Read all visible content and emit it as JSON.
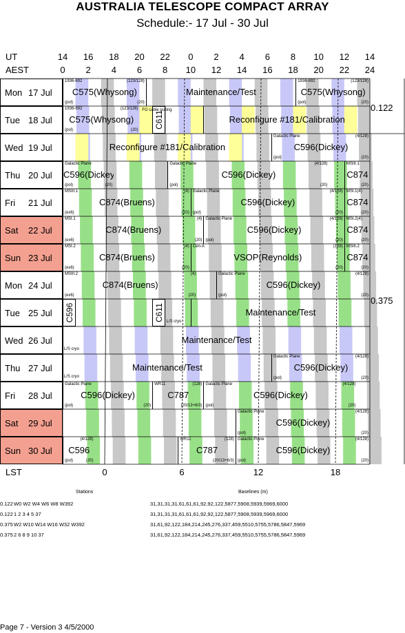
{
  "title": "AUSTRALIA TELESCOPE COMPACT ARRAY",
  "subtitle": "Schedule:- 17 Jul - 30 Jul",
  "axes": {
    "ut_label": "UT",
    "aest_label": "AEST",
    "lst_label": "LST",
    "ut_ticks": [
      "14",
      "16",
      "18",
      "20",
      "22",
      "0",
      "2",
      "4",
      "6",
      "8",
      "10",
      "12",
      "14"
    ],
    "aest_ticks": [
      "0",
      "2",
      "4",
      "6",
      "8",
      "10",
      "12",
      "14",
      "16",
      "18",
      "20",
      "22",
      "24"
    ],
    "lst_ticks": [
      "0",
      "6",
      "12",
      "18"
    ]
  },
  "days": [
    {
      "name": "Mon",
      "date": "17 Jul",
      "weekend": false
    },
    {
      "name": "Tue",
      "date": "18 Jul",
      "weekend": false
    },
    {
      "name": "Wed",
      "date": "19 Jul",
      "weekend": false
    },
    {
      "name": "Thu",
      "date": "20 Jul",
      "weekend": false
    },
    {
      "name": "Fri",
      "date": "21 Jul",
      "weekend": false
    },
    {
      "name": "Sat",
      "date": "22 Jul",
      "weekend": true
    },
    {
      "name": "Sun",
      "date": "23 Jul",
      "weekend": true
    },
    {
      "name": "Mon",
      "date": "24 Jul",
      "weekend": false
    },
    {
      "name": "Tue",
      "date": "25 Jul",
      "weekend": false
    },
    {
      "name": "Wed",
      "date": "26 Jul",
      "weekend": false
    },
    {
      "name": "Thu",
      "date": "27 Jul",
      "weekend": false
    },
    {
      "name": "Fri",
      "date": "28 Jul",
      "weekend": false
    },
    {
      "name": "Sat",
      "date": "29 Jul",
      "weekend": true
    },
    {
      "name": "Sun",
      "date": "30 Jul",
      "weekend": true
    }
  ],
  "configs": {
    "first": "0.122",
    "second": "0.375"
  },
  "blocks": [
    {
      "row": 0,
      "start": 0,
      "end": 6.5,
      "main": "C575(Whysong)",
      "tl": "1936-692",
      "tr": "(123/128)",
      "bl": "(pol)",
      "br": "(20)"
    },
    {
      "row": 0,
      "start": 6.5,
      "end": 18.2,
      "main": "Maintenance/Test",
      "tl": "",
      "tr": "",
      "bl": "",
      "br": ""
    },
    {
      "row": 0,
      "start": 18.2,
      "end": 24,
      "main": "C575(Whysong)",
      "tl": "1936-692",
      "tr": "(123/128)",
      "bl": "(pol)",
      "br": "(20)"
    },
    {
      "row": 1,
      "start": 0,
      "end": 6,
      "main": "C575(Whysong)",
      "tl": "1936-692",
      "tr": "(123/128)",
      "bl": "(pol)",
      "br": "(20)"
    },
    {
      "row": 1,
      "start": 11,
      "end": 24,
      "main": "Reconfigure #181/Calibration",
      "tl": "",
      "tr": "",
      "bl": "",
      "br": ""
    },
    {
      "row": 2,
      "start": 0,
      "end": 16.3,
      "main": "Reconfigure #181/Calibration",
      "tl": "",
      "tr": "",
      "bl": "",
      "br": ""
    },
    {
      "row": 2,
      "start": 16.3,
      "end": 24,
      "main": "C596(Dickey)",
      "tl": "Galactic Plane",
      "tr": "(4/128)",
      "bl": "(pol)",
      "br": "(20)"
    },
    {
      "row": 3,
      "start": 0,
      "end": 4,
      "main": "C596(Dickey)",
      "tl": "Galactic Plane",
      "tr": "",
      "bl": "(pol)",
      "br": "(20)"
    },
    {
      "row": 3,
      "start": 8.2,
      "end": 20.8,
      "main": "C596(Dickey)",
      "tl": "Galactic Plane",
      "tr": "(4/128)",
      "bl": "(pol)",
      "br": "(20)"
    },
    {
      "row": 3,
      "start": 22,
      "end": 24,
      "main": "C874",
      "tl": "MSIII.1",
      "tr": "",
      "bl": "",
      "br": "(20)"
    },
    {
      "row": 4,
      "start": 0,
      "end": 10,
      "main": "C874(Bruens)",
      "tl": "MSIII.1",
      "tr": "(4)",
      "bl": "(ex6)",
      "br": "(20)"
    },
    {
      "row": 4,
      "start": 10,
      "end": 22,
      "main": "C596(Dickey)",
      "tl": "Galactic Plane",
      "tr": "(4/128)",
      "bl": "(pol)",
      "br": "(20)"
    },
    {
      "row": 4,
      "start": 22,
      "end": 24,
      "main": "C874",
      "tl": "MSI.1(4)",
      "tr": "",
      "bl": "",
      "br": "(20)"
    },
    {
      "row": 5,
      "start": 0,
      "end": 11,
      "main": "C874(Bruens)",
      "tl": "MSI.1",
      "tr": "(4)",
      "bl": "(ex6)",
      "br": "(20)"
    },
    {
      "row": 5,
      "start": 11,
      "end": 22,
      "main": "C596(Dickey)",
      "tl": "Galactic Plane",
      "tr": "(4/128)",
      "bl": "(pol)",
      "br": "(20)"
    },
    {
      "row": 5,
      "start": 22,
      "end": 24,
      "main": "C874",
      "tl": "MSI.2(4)",
      "tr": "",
      "bl": "",
      "br": "(20)"
    },
    {
      "row": 6,
      "start": 0,
      "end": 10,
      "main": "C874(Bruens)",
      "tl": "MSI.2",
      "tr": "(4)",
      "bl": "(ex6)",
      "br": "(20)"
    },
    {
      "row": 6,
      "start": 10,
      "end": 22,
      "main": "VSOP(Reynolds)",
      "tl": "Cen-A",
      "tr": "(128)",
      "bl": "",
      "br": "(20)"
    },
    {
      "row": 6,
      "start": 22,
      "end": 24,
      "main": "C874",
      "tl": "MSIII.2",
      "tr": "",
      "bl": "",
      "br": "(20)"
    },
    {
      "row": 7,
      "start": 0,
      "end": 10.5,
      "main": "C874(Bruens)",
      "tl": "MSIII.2",
      "tr": "(4)",
      "bl": "(ex6)",
      "br": "(20)"
    },
    {
      "row": 7,
      "start": 12,
      "end": 24,
      "main": "C596(Dickey)",
      "tl": "Galactic Plane",
      "tr": "(4/128)",
      "bl": "(pol)",
      "br": "(20)"
    },
    {
      "row": 8,
      "start": 10,
      "end": 24,
      "main": "Maintenance/Test",
      "tl": "",
      "tr": "",
      "bl": "",
      "br": ""
    },
    {
      "row": 9,
      "start": 0,
      "end": 24,
      "main": "Maintenance/Test",
      "tl": "",
      "tr": "",
      "bl": "",
      "br": ""
    },
    {
      "row": 10,
      "start": 0,
      "end": 16.3,
      "main": "Maintenance/Test",
      "tl": "",
      "tr": "",
      "bl": "",
      "br": ""
    },
    {
      "row": 10,
      "start": 16.3,
      "end": 24,
      "main": "C596(Dickey)",
      "tl": "Galactic Plane",
      "tr": "(4/128)",
      "bl": "(pol)",
      "br": "(20)"
    },
    {
      "row": 11,
      "start": 0,
      "end": 7,
      "main": "C596(Dickey)",
      "tl": "Galactic Plane",
      "tr": "",
      "bl": "(pol)",
      "br": "(20)"
    },
    {
      "row": 11,
      "start": 7,
      "end": 11,
      "main": "C787",
      "tl": "WR11",
      "tr": "(128)",
      "bl": "",
      "br": "(20/13+6/3)"
    },
    {
      "row": 11,
      "start": 11,
      "end": 23,
      "main": "C596(Dickey)",
      "tl": "Galactic Plane",
      "tr": "(4/128)",
      "bl": "(pol)",
      "br": "(20)"
    },
    {
      "row": 12,
      "start": 13.5,
      "end": 24,
      "main": "C596(Dickey)",
      "tl": "Galactic Plane",
      "tr": "(4/128)",
      "bl": "(pol)",
      "br": "(20)"
    },
    {
      "row": 13,
      "start": 0,
      "end": 2.5,
      "main": "C596",
      "tl": "",
      "tr": "(4/128)",
      "bl": "(pol)",
      "br": "(20)"
    },
    {
      "row": 13,
      "start": 9,
      "end": 13.5,
      "main": "C787",
      "tl": "WR11",
      "tr": "(128)",
      "bl": "",
      "br": "(20/13+6/3)"
    },
    {
      "row": 13,
      "start": 13.5,
      "end": 24,
      "main": "C596(Dickey)",
      "tl": "Galactic Plane",
      "tr": "(4/128)",
      "bl": "(pol)",
      "br": "(20)"
    }
  ],
  "vertical_blocks": [
    {
      "row": 1,
      "start": 7,
      "end": 8,
      "label": "C611"
    },
    {
      "row": 8,
      "start": 7,
      "end": 8,
      "label": "C611"
    },
    {
      "row": 8,
      "start": 0,
      "end": 1,
      "label": "C596"
    }
  ],
  "notes": [
    {
      "row": 1,
      "hour": 6.2,
      "text": "FO cable pulling"
    },
    {
      "row": 8,
      "hour": 8.1,
      "text": "L/S cryo"
    },
    {
      "row": 9,
      "hour": 0.1,
      "text": "L/S cryo"
    },
    {
      "row": 10,
      "hour": 0.1,
      "text": "L/S cryo"
    }
  ],
  "stations": {
    "stations_title": "Stations",
    "baselines_title": "Baselines (m)",
    "rows": [
      {
        "config": "0.122",
        "stations": "W0 W2 W4 W6 W8 W392",
        "baselines": "31,31,31,31,61,61,61,92,92,122,5877,5908,5939,5969,6000"
      },
      {
        "config": "0.122",
        "stations": "1 2 3 4 5 37",
        "baselines": "31,31,31,31,61,61,61,92,92,122,5877,5908,5939,5969,6000"
      },
      {
        "config": "0.375",
        "stations": "W2 W10 W14 W16 W32 W392",
        "baselines": "31,61,92,122,184,214,245,276,337,459,5510,5755,5786,5847,5969"
      },
      {
        "config": "0.375",
        "stations": "2 6 8 9 10 37",
        "baselines": "31,61,92,122,184,214,245,276,337,459,5510,5755,5786,5847,5969"
      }
    ]
  },
  "footer": "Page 7 - Version 3  4/5/2000",
  "colors": {
    "grey": "#c8c8c8",
    "green": "#98e088",
    "yellow": "#ffff99",
    "lilac": "#c8c8f8",
    "weekend": "#f4a090"
  }
}
